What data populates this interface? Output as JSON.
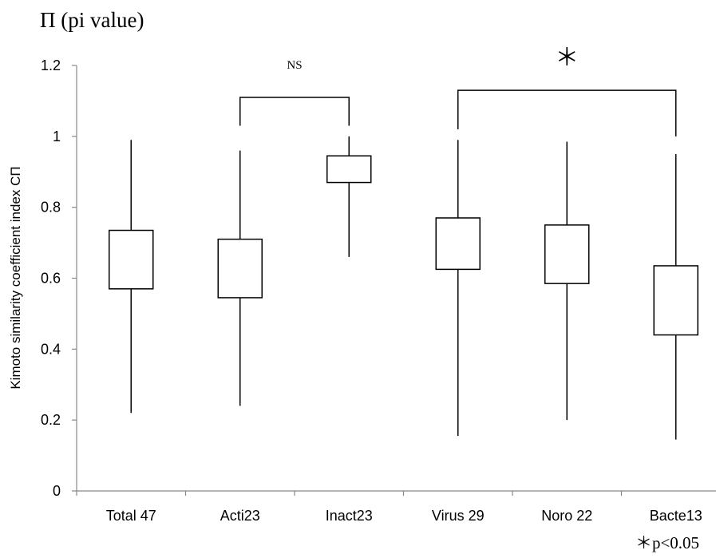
{
  "page_title": "Π (pi value)",
  "footnote": "＊p<0.05",
  "chart_data": {
    "type": "boxplot",
    "ylabel": "Kimoto similarity  coefficient index CΠ",
    "ylim": [
      0,
      1.2
    ],
    "yticks": [
      "0",
      "0.2",
      "0.4",
      "0.6",
      "0.8",
      "1",
      "1.2"
    ],
    "ytick_values": [
      0,
      0.2,
      0.4,
      0.6,
      0.8,
      1,
      1.2
    ],
    "grid": false,
    "categories": [
      "Total 47",
      "Acti23",
      "Inact23",
      "Virus 29",
      "Noro 22",
      "Bacte13"
    ],
    "boxes": [
      {
        "min": 0.22,
        "q1": 0.57,
        "q3": 0.735,
        "max": 0.99
      },
      {
        "min": 0.24,
        "q1": 0.545,
        "q3": 0.71,
        "max": 0.96
      },
      {
        "min": 0.66,
        "q1": 0.87,
        "q3": 0.945,
        "max": 1.0
      },
      {
        "min": 0.155,
        "q1": 0.625,
        "q3": 0.77,
        "max": 0.99
      },
      {
        "min": 0.2,
        "q1": 0.585,
        "q3": 0.75,
        "max": 0.985
      },
      {
        "min": 0.145,
        "q1": 0.44,
        "q3": 0.635,
        "max": 0.95
      }
    ],
    "comparisons": [
      {
        "from": "Acti23",
        "to": "Inact23",
        "label": "NS",
        "level": 1.11,
        "left_end": 1.03,
        "right_end": 1.03
      },
      {
        "from": "Virus 29",
        "to": "Bacte13",
        "label": "＊",
        "level": 1.13,
        "left_end": 1.02,
        "right_end": 1.0
      }
    ]
  }
}
